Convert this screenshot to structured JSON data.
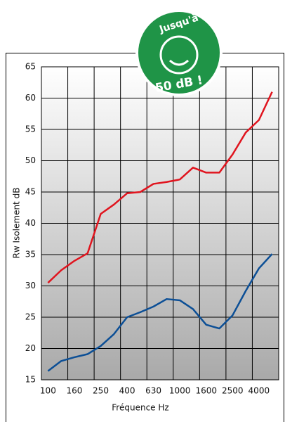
{
  "chart_data": {
    "type": "line",
    "xlabel": "Fréquence Hz",
    "ylabel": "Rw Isolement dB",
    "categories": [
      "100",
      null,
      "160",
      null,
      "250",
      null,
      "400",
      null,
      "630",
      null,
      "1000",
      null,
      "1600",
      null,
      "2500",
      null,
      "4000",
      null
    ],
    "series": [
      {
        "color": "#e0141e",
        "values": [
          30.5,
          32.5,
          34,
          35.2,
          41.5,
          43,
          44.8,
          45,
          46.3,
          46.6,
          47,
          48.9,
          48.1,
          48.1,
          51,
          54.5,
          56.5,
          61
        ]
      },
      {
        "color": "#0c4f96",
        "values": [
          16.4,
          18,
          18.6,
          19.1,
          20.4,
          22.3,
          25,
          25.8,
          26.7,
          27.9,
          27.7,
          26.3,
          23.8,
          23.2,
          25.3,
          29.2,
          32.8,
          35.1
        ]
      }
    ],
    "ylim": [
      15,
      65
    ],
    "yticks": [
      15,
      20,
      25,
      30,
      35,
      40,
      45,
      50,
      55,
      60,
      65
    ],
    "grid": true
  },
  "badge": {
    "top": "Jusqu'à",
    "bottom": "50 dB !"
  }
}
